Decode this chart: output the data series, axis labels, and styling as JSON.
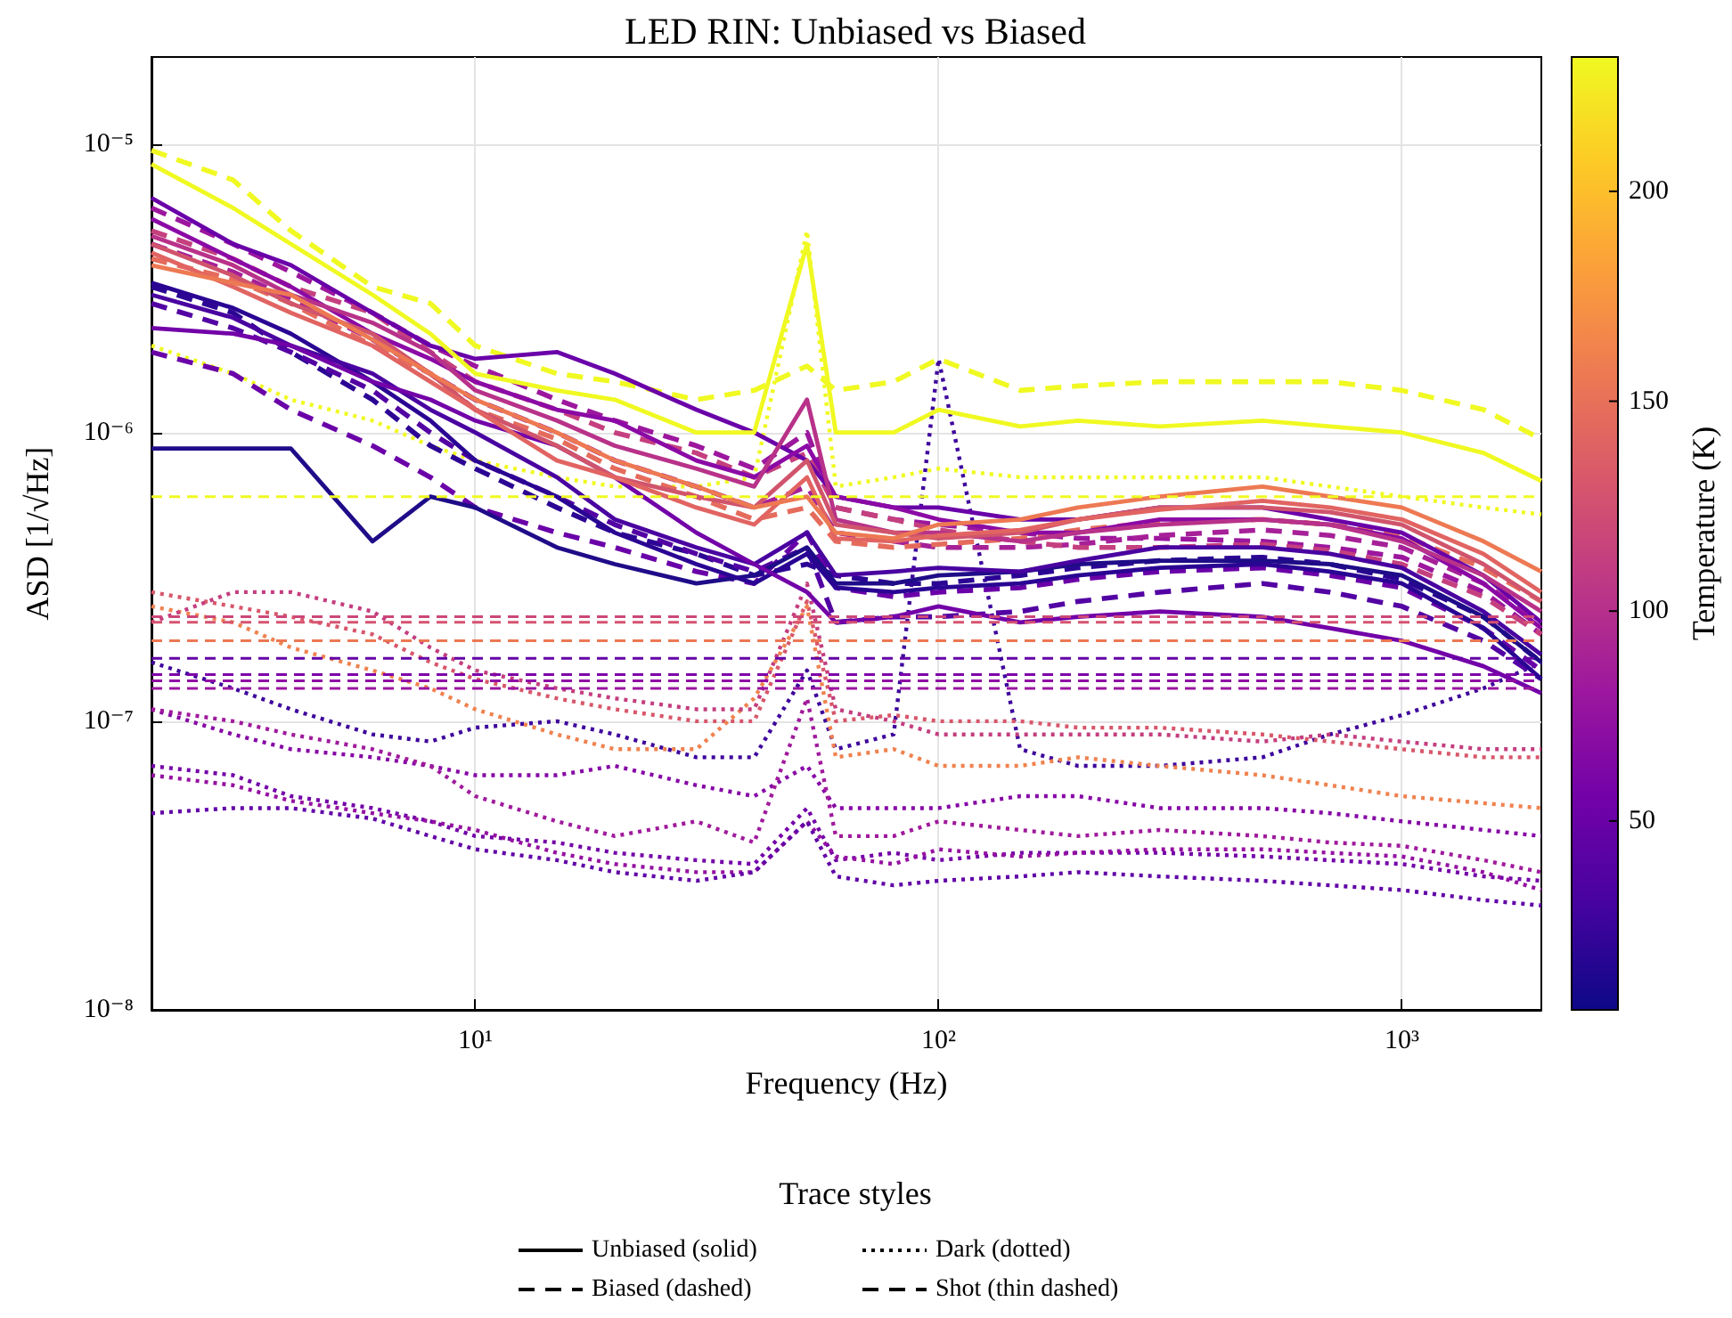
{
  "chart_data": {
    "type": "line",
    "title": "LED RIN: Unbiased vs Biased",
    "xlabel": "Frequency (Hz)",
    "ylabel": "ASD [1/√Hz]",
    "clabel": "Temperature (K)",
    "legend_title": "Trace styles",
    "log": "xy",
    "grid": true,
    "legend": "bottom",
    "marker": "none",
    "xlim": [
      2,
      2000
    ],
    "xticks": [
      {
        "value": 10,
        "label": "10¹"
      },
      {
        "value": 100,
        "label": "10²"
      },
      {
        "value": 1000,
        "label": "10³"
      }
    ],
    "ylim": [
      1e-08,
      2e-05
    ],
    "yticks": [
      {
        "value": 1e-08,
        "label": "10⁻⁸"
      },
      {
        "value": 1e-07,
        "label": "10⁻⁷"
      },
      {
        "value": 1e-06,
        "label": "10⁻⁶"
      },
      {
        "value": 1e-05,
        "label": "10⁻⁵"
      }
    ],
    "clim": [
      5,
      232
    ],
    "cticks": [
      50,
      100,
      150,
      200
    ],
    "ref_lines": [
      {
        "axis": "y",
        "value": 6e-07,
        "color": "#f0f921",
        "line_style": "dashed"
      },
      {
        "axis": "y",
        "value": 2.3e-07,
        "color": "#cc4778",
        "line_style": "dashed"
      },
      {
        "axis": "y",
        "value": 2.2e-07,
        "color": "#d5536f",
        "line_style": "dashed"
      },
      {
        "axis": "y",
        "value": 1.9e-07,
        "color": "#ec7853",
        "line_style": "dashed"
      },
      {
        "axis": "y",
        "value": 1.65e-07,
        "color": "#6300a7",
        "line_style": "dashed"
      },
      {
        "axis": "y",
        "value": 1.45e-07,
        "color": "#7e03a8",
        "line_style": "dashed"
      },
      {
        "axis": "y",
        "value": 1.38e-07,
        "color": "#8f0da4",
        "line_style": "dashed"
      },
      {
        "axis": "y",
        "value": 1.3e-07,
        "color": "#9a15a0",
        "line_style": "dashed"
      }
    ],
    "x": [
      2,
      3,
      4,
      6,
      8,
      10,
      15,
      20,
      30,
      40,
      52,
      60,
      80,
      100,
      150,
      200,
      300,
      500,
      700,
      1000,
      1500,
      2000
    ],
    "series": [
      {
        "name": "Unbiased (solid)",
        "color": "#000000",
        "line_style": "solid",
        "values": [
          null,
          null,
          null,
          null,
          null,
          null,
          null,
          null,
          null,
          null,
          null,
          null,
          null,
          null,
          null,
          null,
          null,
          null,
          null,
          null,
          null,
          null
        ]
      },
      {
        "name": "Biased (dashed)",
        "color": "#000000",
        "line_style": "dashed",
        "values": [
          null,
          null,
          null,
          null,
          null,
          null,
          null,
          null,
          null,
          null,
          null,
          null,
          null,
          null,
          null,
          null,
          null,
          null,
          null,
          null,
          null,
          null
        ]
      },
      {
        "name": "Dark (dotted)",
        "color": "#000000",
        "line_style": "dotted",
        "values": [
          null,
          null,
          null,
          null,
          null,
          null,
          null,
          null,
          null,
          null,
          null,
          null,
          null,
          null,
          null,
          null,
          null,
          null,
          null,
          null,
          null,
          null
        ]
      },
      {
        "name": "Shot (thin dashed)",
        "color": "#000000",
        "line_style": "dashed",
        "values": [
          null,
          null,
          null,
          null,
          null,
          null,
          null,
          null,
          null,
          null,
          null,
          null,
          null,
          null,
          null,
          null,
          null,
          null,
          null,
          null,
          null,
          null
        ]
      },
      {
        "color": "#3e049c",
        "line_style": "dotted",
        "values": [
          1.6e-07,
          1.3e-07,
          1.1e-07,
          9e-08,
          8.5e-08,
          9.5e-08,
          1e-07,
          9e-08,
          7.5e-08,
          7.5e-08,
          1.5e-07,
          8e-08,
          9e-08,
          1.8e-06,
          8e-08,
          7e-08,
          7e-08,
          7.5e-08,
          9e-08,
          1.05e-07,
          1.3e-07,
          1.6e-07
        ]
      },
      {
        "color": "#d8576b",
        "line_style": "dotted",
        "values": [
          2.8e-07,
          2.5e-07,
          2.3e-07,
          2e-07,
          1.6e-07,
          1.4e-07,
          1.2e-07,
          1.1e-07,
          1e-07,
          1e-07,
          2.6e-07,
          1e-07,
          1.05e-07,
          1e-07,
          1e-07,
          9.5e-08,
          9.5e-08,
          9e-08,
          8.5e-08,
          8e-08,
          7.5e-08,
          7.5e-08
        ]
      },
      {
        "color": "#f0824f",
        "line_style": "dotted",
        "values": [
          2.5e-07,
          2.2e-07,
          1.8e-07,
          1.5e-07,
          1.3e-07,
          1.1e-07,
          9e-08,
          8e-08,
          8e-08,
          1.2e-07,
          2.5e-07,
          7.5e-08,
          8e-08,
          7e-08,
          7e-08,
          7.5e-08,
          7e-08,
          6.5e-08,
          6e-08,
          5.5e-08,
          5.2e-08,
          5e-08
        ]
      },
      {
        "color": "#c43e7f",
        "line_style": "dotted",
        "values": [
          2.2e-07,
          2.8e-07,
          2.8e-07,
          2.4e-07,
          1.8e-07,
          1.5e-07,
          1.3e-07,
          1.2e-07,
          1.1e-07,
          1.1e-07,
          3e-07,
          1.1e-07,
          1e-07,
          9e-08,
          9e-08,
          9e-08,
          9e-08,
          8.5e-08,
          9e-08,
          8.5e-08,
          8e-08,
          8e-08
        ]
      },
      {
        "color": "#8606a6",
        "line_style": "dotted",
        "values": [
          1.1e-07,
          9e-08,
          8e-08,
          7.5e-08,
          7e-08,
          6.5e-08,
          6.5e-08,
          7e-08,
          6e-08,
          5.5e-08,
          7e-08,
          5e-08,
          5e-08,
          5e-08,
          5.5e-08,
          5.5e-08,
          5e-08,
          5e-08,
          4.8e-08,
          4.5e-08,
          4.2e-08,
          4e-08
        ]
      },
      {
        "color": "#7301a8",
        "line_style": "dotted",
        "values": [
          7e-08,
          6.5e-08,
          5.5e-08,
          5e-08,
          4.5e-08,
          4e-08,
          3.8e-08,
          3.5e-08,
          3.3e-08,
          3.2e-08,
          5e-08,
          3.3e-08,
          3.5e-08,
          3.3e-08,
          3.5e-08,
          3.5e-08,
          3.5e-08,
          3.4e-08,
          3.3e-08,
          3.2e-08,
          2.9e-08,
          2.8e-08
        ]
      },
      {
        "color": "#9511a1",
        "line_style": "dotted",
        "values": [
          6.5e-08,
          6e-08,
          5.3e-08,
          4.8e-08,
          4.5e-08,
          4.2e-08,
          3.5e-08,
          3.2e-08,
          3e-08,
          3e-08,
          4.5e-08,
          3.4e-08,
          3.2e-08,
          3.6e-08,
          3.4e-08,
          3.5e-08,
          3.6e-08,
          3.6e-08,
          3.5e-08,
          3.4e-08,
          3e-08,
          2.6e-08
        ]
      },
      {
        "color": "#6100a7",
        "line_style": "dotted",
        "values": [
          4.8e-08,
          5e-08,
          5e-08,
          4.6e-08,
          4e-08,
          3.6e-08,
          3.3e-08,
          3e-08,
          2.8e-08,
          3e-08,
          4.5e-08,
          2.9e-08,
          2.7e-08,
          2.8e-08,
          2.9e-08,
          3e-08,
          2.9e-08,
          2.8e-08,
          2.7e-08,
          2.6e-08,
          2.4e-08,
          2.3e-08
        ]
      },
      {
        "color": "#a01a9c",
        "line_style": "dotted",
        "values": [
          1.1e-07,
          1e-07,
          9e-08,
          8e-08,
          7e-08,
          5.5e-08,
          4.5e-08,
          4e-08,
          4.5e-08,
          3.8e-08,
          1.2e-07,
          4e-08,
          4e-08,
          4.5e-08,
          4.2e-08,
          4e-08,
          4.2e-08,
          4e-08,
          3.8e-08,
          3.7e-08,
          3.3e-08,
          3e-08
        ]
      },
      {
        "color": "#f0f921",
        "line_style": "dotted",
        "values": [
          2e-06,
          1.6e-06,
          1.3e-06,
          1.1e-06,
          9e-07,
          8e-07,
          7e-07,
          6.5e-07,
          6.5e-07,
          7e-07,
          5e-06,
          6.5e-07,
          7e-07,
          7.5e-07,
          7e-07,
          7e-07,
          7e-07,
          7e-07,
          6.5e-07,
          6e-07,
          5.5e-07,
          5.2e-07
        ]
      },
      {
        "color": "#2c0594",
        "line_style": "dashed",
        "values": [
          3.2e-06,
          2.6e-06,
          1.9e-06,
          1.3e-06,
          9e-07,
          7.5e-07,
          5.5e-07,
          4.5e-07,
          3.8e-07,
          3.2e-07,
          3.5e-07,
          3.2e-07,
          3e-07,
          3e-07,
          3.2e-07,
          3.4e-07,
          3.6e-07,
          3.7e-07,
          3.5e-07,
          3.1e-07,
          2.3e-07,
          1.6e-07
        ]
      },
      {
        "color": "#6a00a8",
        "line_style": "dashed",
        "values": [
          1.9e-06,
          1.6e-06,
          1.2e-06,
          9e-07,
          7e-07,
          5.5e-07,
          4.5e-07,
          4e-07,
          3.3e-07,
          3e-07,
          4.5e-07,
          2.9e-07,
          2.7e-07,
          2.8e-07,
          2.9e-07,
          3.1e-07,
          3.3e-07,
          3.4e-07,
          3.2e-07,
          2.9e-07,
          2.1e-07,
          1.5e-07
        ]
      },
      {
        "color": "#5302a3",
        "line_style": "dashed",
        "values": [
          2.8e-06,
          2.3e-06,
          1.9e-06,
          1.4e-06,
          1e-06,
          8e-07,
          6e-07,
          4.8e-07,
          3.8e-07,
          3.3e-07,
          4e-07,
          2.2e-07,
          2.3e-07,
          2.3e-07,
          2.4e-07,
          2.6e-07,
          2.8e-07,
          3e-07,
          2.8e-07,
          2.5e-07,
          1.9e-07,
          1.4e-07
        ]
      },
      {
        "color": "#9c179e",
        "line_style": "dashed",
        "values": [
          6e-06,
          4.5e-06,
          3.6e-06,
          2.6e-06,
          2e-06,
          1.7e-06,
          1.3e-06,
          1.1e-06,
          9e-07,
          7.5e-07,
          1e-06,
          5.5e-07,
          5e-07,
          4.8e-07,
          4.5e-07,
          4.3e-07,
          4.3e-07,
          4.2e-07,
          4e-07,
          3.7e-07,
          2.8e-07,
          2e-07
        ]
      },
      {
        "color": "#a62098",
        "line_style": "dashed",
        "values": [
          4.5e-06,
          3.6e-06,
          2.9e-06,
          2.1e-06,
          1.6e-06,
          1.3e-06,
          1e-06,
          8e-07,
          6.5e-07,
          5.5e-07,
          6.5e-07,
          4.5e-07,
          4.2e-07,
          4e-07,
          4e-07,
          4.1e-07,
          4.4e-07,
          4.6e-07,
          4.4e-07,
          4e-07,
          3e-07,
          2.2e-07
        ]
      },
      {
        "color": "#c5407e",
        "line_style": "dashed",
        "values": [
          5e-06,
          4e-06,
          3.2e-06,
          2.6e-06,
          1.9e-06,
          1.5e-06,
          1.2e-06,
          1e-06,
          8.5e-07,
          7e-07,
          8.5e-07,
          5.5e-07,
          5e-07,
          4.6e-07,
          4.2e-07,
          4e-07,
          4e-07,
          4.1e-07,
          3.9e-07,
          3.5e-07,
          2.7e-07,
          2e-07
        ]
      },
      {
        "color": "#e56b5d",
        "line_style": "dashed",
        "values": [
          4e-06,
          3.4e-06,
          2.8e-06,
          2e-06,
          1.6e-06,
          1.2e-06,
          9.5e-07,
          7.5e-07,
          6e-07,
          5e-07,
          5.5e-07,
          4.2e-07,
          4e-07,
          4.1e-07,
          4.3e-07,
          4.6e-07,
          4.9e-07,
          5e-07,
          4.8e-07,
          4.4e-07,
          3.4e-07,
          2.6e-07
        ]
      },
      {
        "color": "#f0f921",
        "line_style": "dashed",
        "values": [
          9.5e-06,
          7.5e-06,
          5e-06,
          3.2e-06,
          2.8e-06,
          2e-06,
          1.6e-06,
          1.5e-06,
          1.3e-06,
          1.4e-06,
          1.7e-06,
          1.4e-06,
          1.5e-06,
          1.8e-06,
          1.4e-06,
          1.45e-06,
          1.5e-06,
          1.5e-06,
          1.5e-06,
          1.4e-06,
          1.2e-06,
          9.5e-07
        ]
      },
      {
        "color": "#1f0c88",
        "line_style": "solid",
        "values": [
          8.8e-07,
          8.8e-07,
          8.8e-07,
          4.2e-07,
          6e-07,
          5.5e-07,
          4e-07,
          3.5e-07,
          3e-07,
          3.2e-07,
          4e-07,
          3e-07,
          3e-07,
          3.2e-07,
          3.3e-07,
          3.5e-07,
          3.6e-07,
          3.6e-07,
          3.5e-07,
          3.2e-07,
          2.3e-07,
          1.6e-07
        ]
      },
      {
        "color": "#2a0593",
        "line_style": "solid",
        "values": [
          3.3e-06,
          2.7e-06,
          2.2e-06,
          1.5e-06,
          1.1e-06,
          8e-07,
          6e-07,
          4.5e-07,
          3.5e-07,
          3e-07,
          3.8e-07,
          2.9e-07,
          2.8e-07,
          2.9e-07,
          3e-07,
          3.2e-07,
          3.4e-07,
          3.5e-07,
          3.3e-07,
          3e-07,
          2.1e-07,
          1.4e-07
        ]
      },
      {
        "color": "#4903a0",
        "line_style": "solid",
        "values": [
          3e-06,
          2.5e-06,
          2e-06,
          1.6e-06,
          1.2e-06,
          1e-06,
          7e-07,
          5e-07,
          4e-07,
          3.5e-07,
          4.5e-07,
          3.2e-07,
          3.3e-07,
          3.4e-07,
          3.3e-07,
          3.6e-07,
          4e-07,
          4e-07,
          3.8e-07,
          3.4e-07,
          2.4e-07,
          1.7e-07
        ]
      },
      {
        "color": "#7201a8",
        "line_style": "solid",
        "values": [
          2.3e-06,
          2.2e-06,
          2e-06,
          1.5e-06,
          1.3e-06,
          1.1e-06,
          9e-07,
          7e-07,
          4.5e-07,
          3.5e-07,
          2.8e-07,
          2.2e-07,
          2.3e-07,
          2.5e-07,
          2.2e-07,
          2.3e-07,
          2.4e-07,
          2.3e-07,
          2.1e-07,
          1.9e-07,
          1.55e-07,
          1.25e-07
        ]
      },
      {
        "color": "#6a00a8",
        "line_style": "solid",
        "values": [
          6.5e-06,
          4.5e-06,
          3.8e-06,
          2.6e-06,
          2e-06,
          1.8e-06,
          1.9e-06,
          1.6e-06,
          1.2e-06,
          1e-06,
          8e-07,
          6e-07,
          5.5e-07,
          5.5e-07,
          5e-07,
          5e-07,
          5.5e-07,
          5.5e-07,
          5e-07,
          4.5e-07,
          3.2e-07,
          2.2e-07
        ]
      },
      {
        "color": "#8b0aa5",
        "line_style": "solid",
        "values": [
          5.5e-06,
          4e-06,
          3.2e-06,
          2.2e-06,
          1.8e-06,
          1.5e-06,
          1.2e-06,
          1.1e-06,
          8e-07,
          7e-07,
          9e-07,
          6e-07,
          5.5e-07,
          5e-07,
          4.5e-07,
          4.5e-07,
          5e-07,
          5e-07,
          4.8e-07,
          4.3e-07,
          3e-07,
          2.1e-07
        ]
      },
      {
        "color": "#b83289",
        "line_style": "solid",
        "values": [
          4.8e-06,
          3.8e-06,
          3e-06,
          2.4e-06,
          1.9e-06,
          1.4e-06,
          1.1e-06,
          9e-07,
          7.5e-07,
          6.5e-07,
          1.3e-06,
          5e-07,
          4.5e-07,
          4.5e-07,
          4.2e-07,
          4.5e-07,
          4.8e-07,
          5e-07,
          4.8e-07,
          4.2e-07,
          3.2e-07,
          2.4e-07
        ]
      },
      {
        "color": "#d0546c",
        "line_style": "solid",
        "values": [
          4.5e-06,
          3.5e-06,
          2.8e-06,
          2.2e-06,
          1.6e-06,
          1.2e-06,
          9e-07,
          7e-07,
          6e-07,
          5.5e-07,
          8e-07,
          4.8e-07,
          4.5e-07,
          4.3e-07,
          4.5e-07,
          5e-07,
          5.5e-07,
          5.5e-07,
          5.3e-07,
          4.8e-07,
          3.5e-07,
          2.6e-07
        ]
      },
      {
        "color": "#e16462",
        "line_style": "solid",
        "values": [
          4.2e-06,
          3.2e-06,
          2.6e-06,
          2e-06,
          1.5e-06,
          1.2e-06,
          8e-07,
          7e-07,
          5.5e-07,
          4.8e-07,
          7e-07,
          4.3e-07,
          4.2e-07,
          4.4e-07,
          4.6e-07,
          5e-07,
          5.4e-07,
          5.8e-07,
          5.5e-07,
          5e-07,
          3.8e-07,
          2.8e-07
        ]
      },
      {
        "color": "#ed7953",
        "line_style": "solid",
        "values": [
          3.8e-06,
          3.3e-06,
          3e-06,
          2.1e-06,
          1.6e-06,
          1.3e-06,
          1e-06,
          8e-07,
          6.5e-07,
          5.5e-07,
          6e-07,
          4.5e-07,
          4.3e-07,
          4.8e-07,
          5e-07,
          5.5e-07,
          6e-07,
          6.5e-07,
          6e-07,
          5.5e-07,
          4.2e-07,
          3.3e-07
        ]
      },
      {
        "color": "#f0f921",
        "line_style": "solid",
        "values": [
          8.5e-06,
          6e-06,
          4.5e-06,
          3e-06,
          2.2e-06,
          1.6e-06,
          1.4e-06,
          1.3e-06,
          1e-06,
          1e-06,
          4.5e-06,
          1e-06,
          1e-06,
          1.2e-06,
          1.05e-06,
          1.1e-06,
          1.05e-06,
          1.1e-06,
          1.05e-06,
          1e-06,
          8.5e-07,
          6.8e-07
        ]
      }
    ]
  }
}
